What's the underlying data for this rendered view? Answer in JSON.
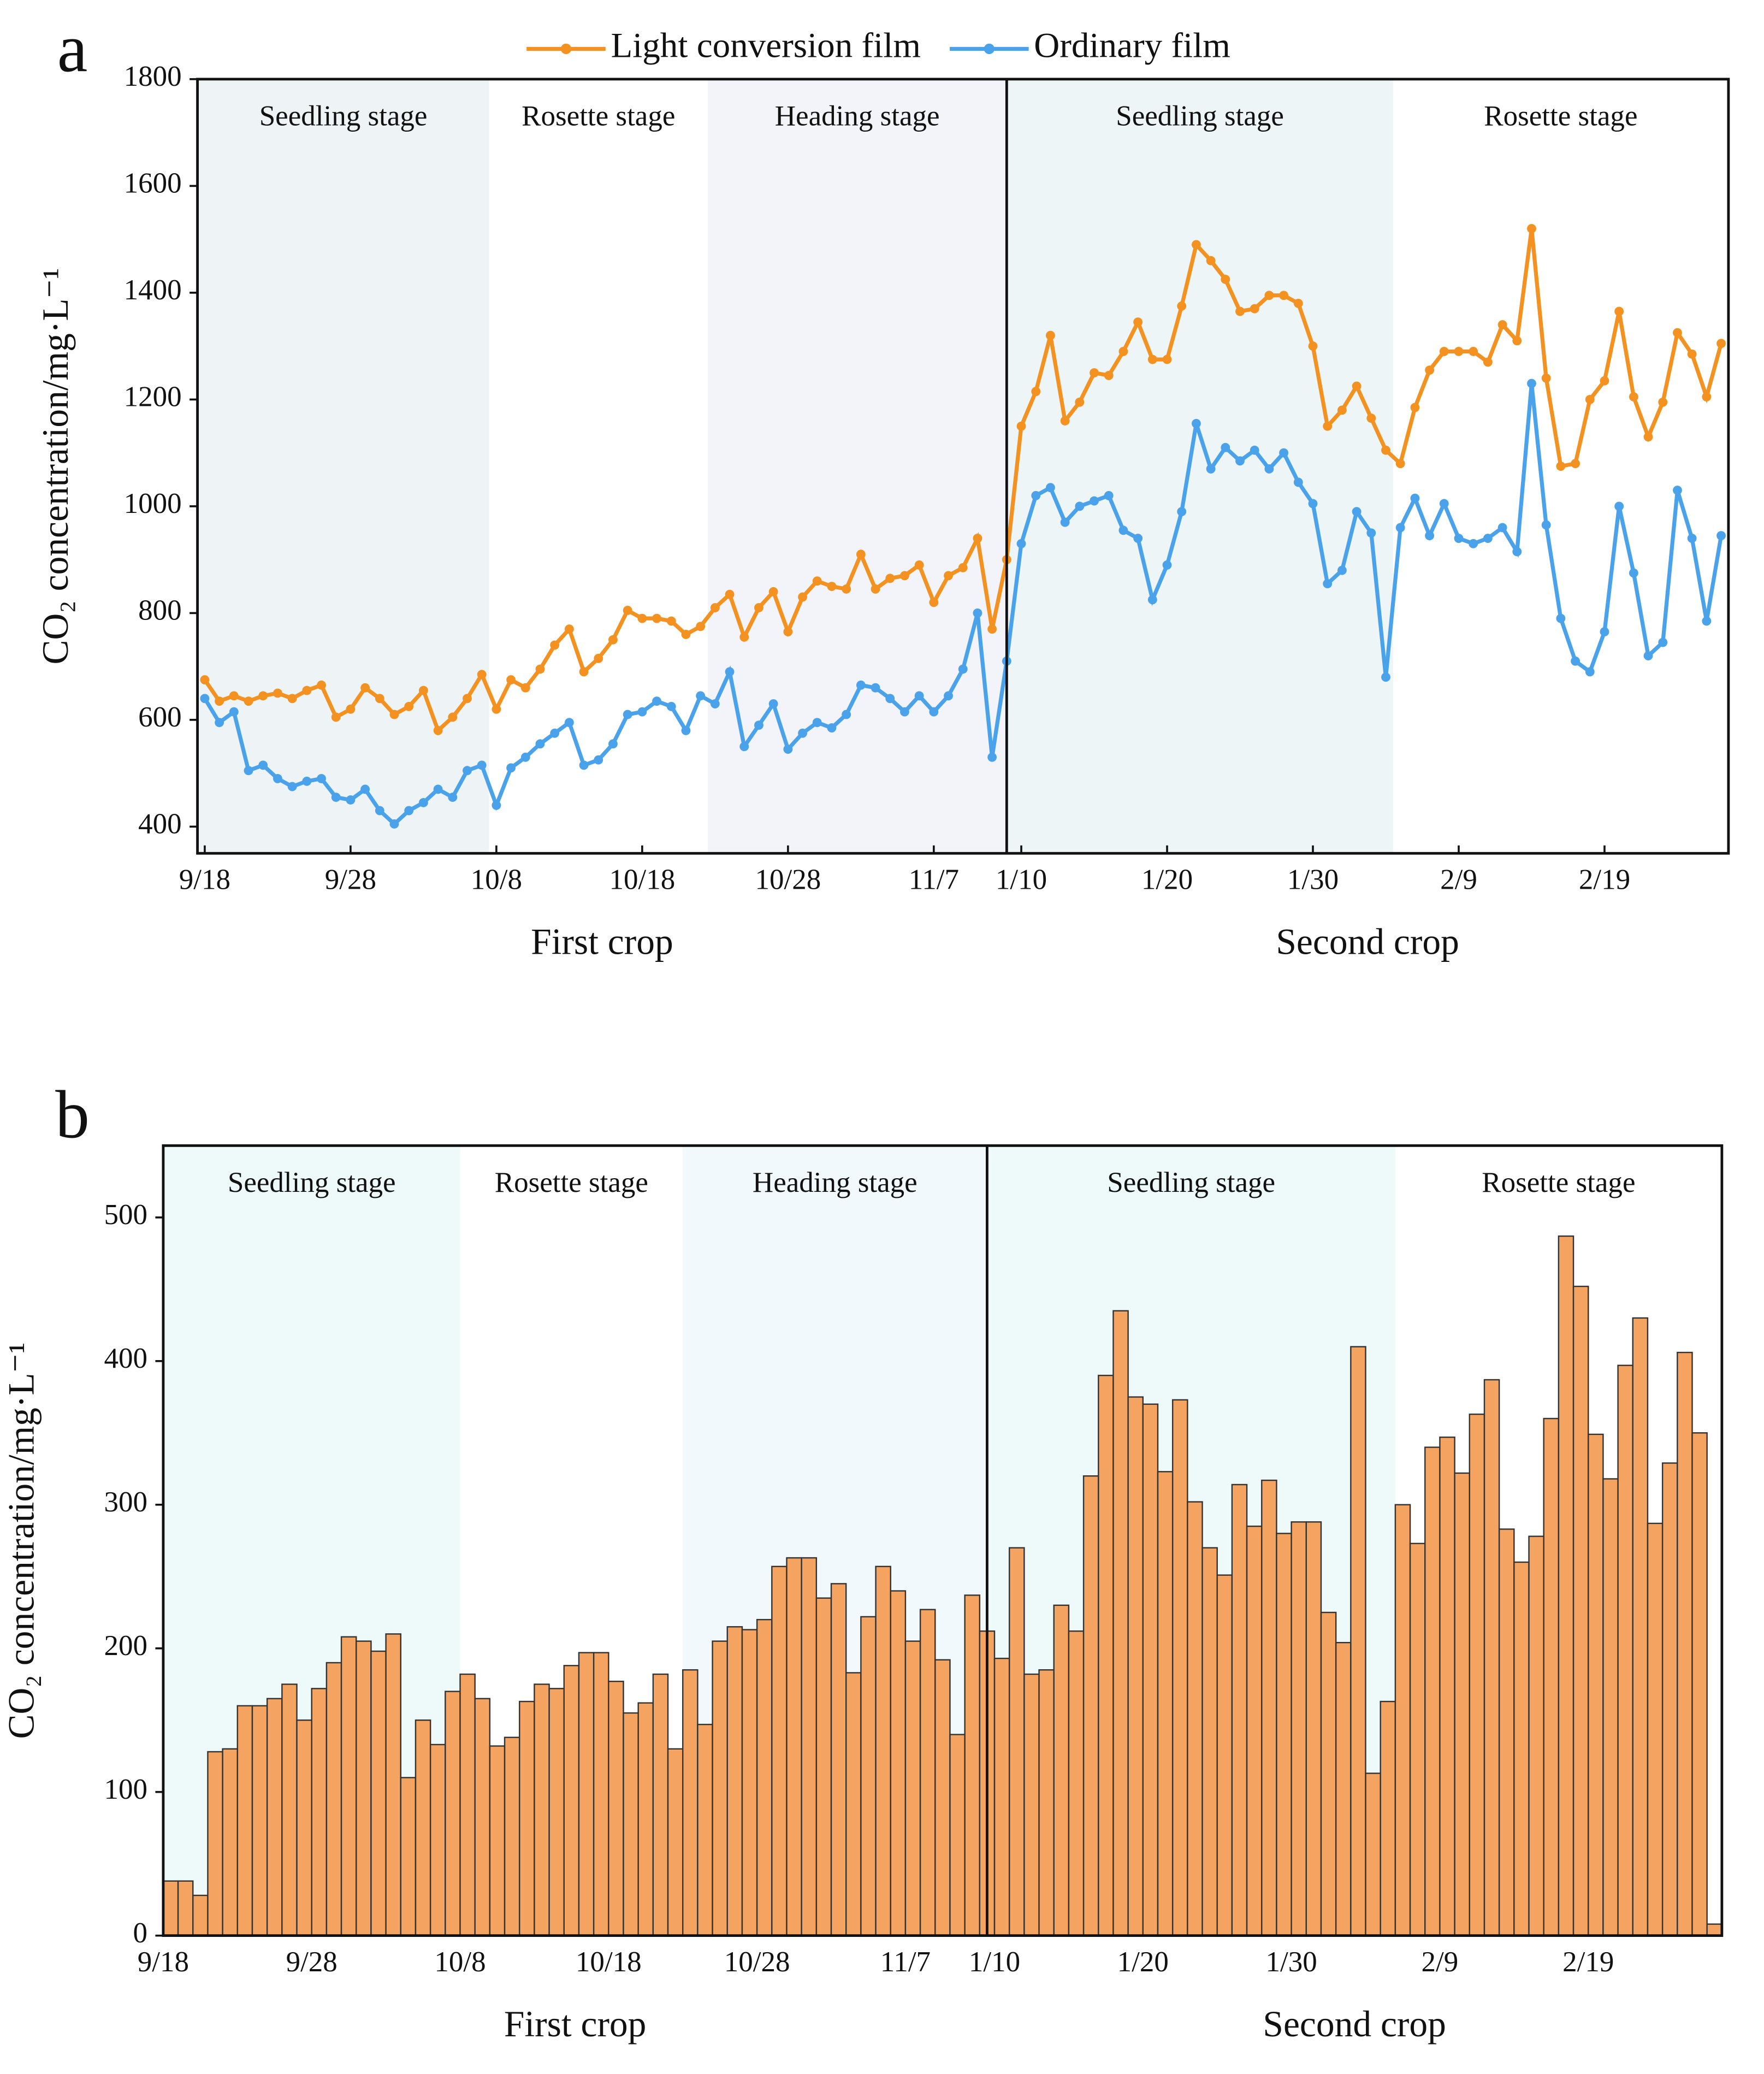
{
  "chart_data": [
    {
      "type": "line",
      "panel_label": "a",
      "y_label": "CO₂ concentration/mg·L⁻¹",
      "categories": [
        "9/18",
        null,
        null,
        null,
        null,
        null,
        null,
        null,
        null,
        null,
        "9/28",
        null,
        null,
        null,
        null,
        null,
        null,
        null,
        null,
        null,
        "10/8",
        null,
        null,
        null,
        null,
        null,
        null,
        null,
        null,
        null,
        "10/18",
        null,
        null,
        null,
        null,
        null,
        null,
        null,
        null,
        null,
        "10/28",
        null,
        null,
        null,
        null,
        null,
        null,
        null,
        null,
        null,
        "11/7",
        null,
        null,
        null,
        null,
        null,
        "1/10",
        null,
        null,
        null,
        null,
        null,
        null,
        null,
        null,
        null,
        "1/20",
        null,
        null,
        null,
        null,
        null,
        null,
        null,
        null,
        null,
        "1/30",
        null,
        null,
        null,
        null,
        null,
        null,
        null,
        null,
        null,
        "2/9",
        null,
        null,
        null,
        null,
        null,
        null,
        null,
        null,
        null,
        "2/19",
        null,
        null,
        null,
        null,
        null,
        null,
        null,
        null
      ],
      "series": [
        {
          "name": "Light conversion film",
          "color": "#f39220",
          "values": [
            675,
            635,
            645,
            635,
            645,
            650,
            640,
            655,
            665,
            605,
            620,
            660,
            640,
            610,
            625,
            655,
            580,
            605,
            640,
            685,
            620,
            675,
            660,
            695,
            740,
            770,
            690,
            715,
            750,
            805,
            790,
            790,
            785,
            760,
            775,
            810,
            835,
            755,
            810,
            840,
            765,
            830,
            860,
            850,
            845,
            910,
            845,
            865,
            870,
            890,
            820,
            870,
            885,
            940,
            770,
            900,
            1150,
            1215,
            1320,
            1160,
            1195,
            1250,
            1245,
            1290,
            1345,
            1275,
            1275,
            1375,
            1490,
            1460,
            1425,
            1365,
            1370,
            1395,
            1395,
            1380,
            1300,
            1150,
            1180,
            1225,
            1165,
            1105,
            1080,
            1185,
            1255,
            1290,
            1290,
            1290,
            1270,
            1340,
            1310,
            1520,
            1240,
            1075,
            1080,
            1200,
            1235,
            1365,
            1205,
            1130,
            1195,
            1325,
            1285,
            1205,
            1305
          ]
        },
        {
          "name": "Ordinary film",
          "color": "#4aa3ea",
          "values": [
            640,
            595,
            615,
            505,
            515,
            490,
            475,
            485,
            490,
            455,
            450,
            470,
            430,
            405,
            430,
            445,
            470,
            455,
            505,
            515,
            440,
            510,
            530,
            555,
            575,
            595,
            515,
            525,
            555,
            610,
            615,
            635,
            625,
            580,
            645,
            630,
            690,
            550,
            590,
            630,
            545,
            575,
            595,
            585,
            610,
            665,
            660,
            640,
            615,
            645,
            615,
            645,
            695,
            800,
            530,
            710,
            930,
            1020,
            1035,
            970,
            1000,
            1010,
            1020,
            955,
            940,
            825,
            890,
            990,
            1155,
            1070,
            1110,
            1085,
            1105,
            1070,
            1100,
            1045,
            1005,
            855,
            880,
            990,
            950,
            680,
            960,
            1015,
            945,
            1005,
            940,
            930,
            940,
            960,
            915,
            1230,
            965,
            790,
            710,
            690,
            765,
            1000,
            875,
            720,
            745,
            1030,
            940,
            785,
            945
          ]
        }
      ],
      "ylim": [
        350,
        1800
      ],
      "yticks": [
        400,
        600,
        800,
        1000,
        1200,
        1400,
        1600,
        1800
      ],
      "stages": [
        {
          "label": "Seedling stage",
          "from": 0,
          "to": 20,
          "shade": "#eef4f6"
        },
        {
          "label": "Rosette stage",
          "from": 20,
          "to": 35,
          "shade": "#ffffff"
        },
        {
          "label": "Heading stage",
          "from": 35,
          "to": 55.5,
          "shade": "#f2f4f9"
        },
        {
          "label": "Seedling stage",
          "from": 55.5,
          "to": 82,
          "shade": "#eef5f7"
        },
        {
          "label": "Rosette stage",
          "from": 82,
          "to": 105,
          "shade": "#ffffff"
        }
      ],
      "x_groups": [
        {
          "label": "First crop",
          "from": 0,
          "to": 55.5
        },
        {
          "label": "Second crop",
          "from": 55.5,
          "to": 105
        }
      ]
    },
    {
      "type": "bar",
      "panel_label": "b",
      "y_label": "CO₂ concentration/mg·L⁻¹",
      "color": "#f4a460",
      "categories": [
        "9/18",
        null,
        null,
        null,
        null,
        null,
        null,
        null,
        null,
        null,
        "9/28",
        null,
        null,
        null,
        null,
        null,
        null,
        null,
        null,
        null,
        "10/8",
        null,
        null,
        null,
        null,
        null,
        null,
        null,
        null,
        null,
        "10/18",
        null,
        null,
        null,
        null,
        null,
        null,
        null,
        null,
        null,
        "10/28",
        null,
        null,
        null,
        null,
        null,
        null,
        null,
        null,
        null,
        "11/7",
        null,
        null,
        null,
        null,
        null,
        "1/10",
        null,
        null,
        null,
        null,
        null,
        null,
        null,
        null,
        null,
        "1/20",
        null,
        null,
        null,
        null,
        null,
        null,
        null,
        null,
        null,
        "1/30",
        null,
        null,
        null,
        null,
        null,
        null,
        null,
        null,
        null,
        "2/9",
        null,
        null,
        null,
        null,
        null,
        null,
        null,
        null,
        null,
        "2/19",
        null,
        null,
        null,
        null,
        null,
        null,
        null,
        null
      ],
      "values": [
        38,
        38,
        28,
        128,
        130,
        160,
        160,
        165,
        175,
        150,
        172,
        190,
        208,
        205,
        198,
        210,
        110,
        150,
        133,
        170,
        182,
        165,
        132,
        138,
        163,
        175,
        172,
        188,
        197,
        197,
        177,
        155,
        162,
        182,
        130,
        185,
        147,
        205,
        215,
        213,
        220,
        257,
        263,
        263,
        235,
        245,
        183,
        222,
        257,
        240,
        205,
        227,
        192,
        140,
        237,
        212,
        193,
        270,
        182,
        185,
        230,
        212,
        320,
        390,
        435,
        375,
        370,
        323,
        373,
        302,
        270,
        251,
        314,
        285,
        317,
        280,
        288,
        288,
        225,
        204,
        410,
        113,
        163,
        300,
        273,
        340,
        347,
        322,
        363,
        387,
        283,
        260,
        278,
        360,
        487,
        452,
        349,
        318,
        397,
        430,
        287,
        329,
        406,
        350,
        8
      ],
      "ylim": [
        0,
        550
      ],
      "yticks": [
        0,
        100,
        200,
        300,
        400,
        500
      ],
      "stages": [
        {
          "label": "Seedling stage",
          "from": 0,
          "to": 20,
          "shade": "#eef9f9"
        },
        {
          "label": "Rosette stage",
          "from": 20,
          "to": 35,
          "shade": "#ffffff"
        },
        {
          "label": "Heading stage",
          "from": 35,
          "to": 55.5,
          "shade": "#f1f9fc"
        },
        {
          "label": "Seedling stage",
          "from": 55.5,
          "to": 83,
          "shade": "#eef9f9"
        },
        {
          "label": "Rosette stage",
          "from": 83,
          "to": 105,
          "shade": "#ffffff"
        }
      ],
      "x_groups": [
        {
          "label": "First crop",
          "from": 0,
          "to": 55.5
        },
        {
          "label": "Second crop",
          "from": 55.5,
          "to": 105
        }
      ]
    }
  ]
}
